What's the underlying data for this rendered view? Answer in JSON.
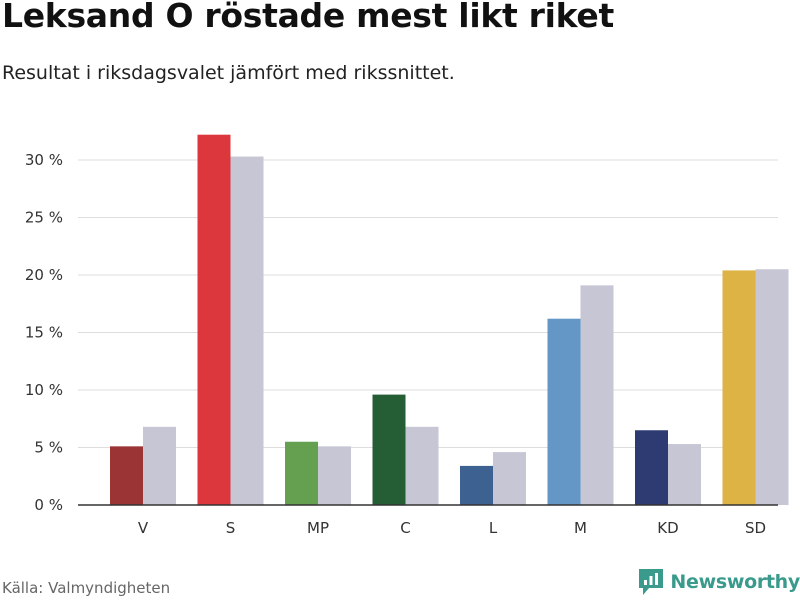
{
  "header": {
    "title": "Leksand O röstade mest likt riket",
    "subtitle": "Resultat i riksdagsvalet jämfört med rikssnittet."
  },
  "footer": {
    "source": "Källa: Valmyndigheten",
    "brand": "Newsworthy",
    "brand_icon": "newsworthy-logo-icon"
  },
  "colors": {
    "comparison": "#c7c6d4",
    "grid": "#dddddd",
    "axis": "#333333",
    "brand": "#3a9a8c"
  },
  "chart_data": {
    "type": "bar",
    "title": "",
    "xlabel": "",
    "ylabel": "",
    "ylim": [
      0,
      32
    ],
    "yticks": [
      0,
      5,
      10,
      15,
      20,
      25,
      30
    ],
    "ytick_labels": [
      "0 %",
      "5 %",
      "10 %",
      "15 %",
      "20 %",
      "25 %",
      "30 %"
    ],
    "grid": true,
    "legend": "none",
    "categories": [
      "V",
      "S",
      "MP",
      "C",
      "L",
      "M",
      "KD",
      "SD"
    ],
    "series": [
      {
        "values": [
          5.1,
          32.2,
          5.5,
          9.6,
          3.4,
          16.2,
          6.5,
          20.4
        ],
        "colors": [
          "#9b3434",
          "#dc373d",
          "#64a050",
          "#255e35",
          "#3d6291",
          "#6497c6",
          "#2e3a72",
          "#deb345"
        ]
      },
      {
        "values": [
          6.8,
          30.3,
          5.1,
          6.8,
          4.6,
          19.1,
          5.3,
          20.5
        ],
        "color": "#c7c6d4"
      }
    ]
  }
}
